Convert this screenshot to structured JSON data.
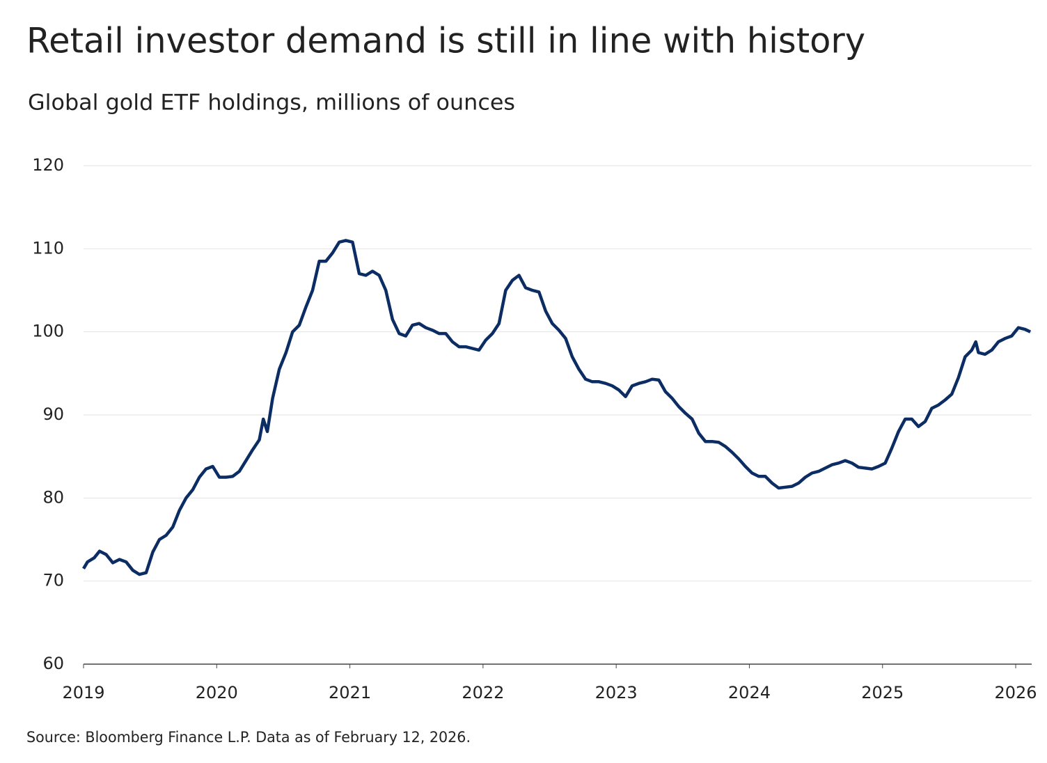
{
  "chart_data": {
    "type": "line",
    "title": "Retail investor demand is still in line with history",
    "subtitle": "Global gold ETF holdings, millions of ounces",
    "source": "Source: Bloomberg Finance L.P. Data as of February 12, 2026.",
    "x": [
      2019.0,
      2019.03,
      2019.08,
      2019.12,
      2019.17,
      2019.22,
      2019.27,
      2019.32,
      2019.37,
      2019.42,
      2019.47,
      2019.52,
      2019.57,
      2019.62,
      2019.67,
      2019.72,
      2019.77,
      2019.82,
      2019.87,
      2019.92,
      2019.97,
      2020.02,
      2020.07,
      2020.12,
      2020.17,
      2020.22,
      2020.27,
      2020.32,
      2020.35,
      2020.38,
      2020.42,
      2020.47,
      2020.52,
      2020.57,
      2020.62,
      2020.67,
      2020.72,
      2020.77,
      2020.82,
      2020.87,
      2020.92,
      2020.97,
      2021.02,
      2021.07,
      2021.12,
      2021.17,
      2021.22,
      2021.27,
      2021.32,
      2021.37,
      2021.42,
      2021.47,
      2021.52,
      2021.57,
      2021.62,
      2021.67,
      2021.72,
      2021.77,
      2021.82,
      2021.87,
      2021.92,
      2021.97,
      2022.02,
      2022.07,
      2022.12,
      2022.17,
      2022.22,
      2022.27,
      2022.32,
      2022.37,
      2022.42,
      2022.47,
      2022.52,
      2022.57,
      2022.62,
      2022.67,
      2022.72,
      2022.77,
      2022.82,
      2022.87,
      2022.92,
      2022.97,
      2023.02,
      2023.07,
      2023.12,
      2023.17,
      2023.22,
      2023.27,
      2023.32,
      2023.37,
      2023.42,
      2023.47,
      2023.52,
      2023.57,
      2023.62,
      2023.67,
      2023.72,
      2023.77,
      2023.82,
      2023.87,
      2023.92,
      2023.97,
      2024.02,
      2024.07,
      2024.12,
      2024.17,
      2024.22,
      2024.27,
      2024.32,
      2024.37,
      2024.42,
      2024.47,
      2024.52,
      2024.57,
      2024.62,
      2024.67,
      2024.72,
      2024.77,
      2024.82,
      2024.87,
      2024.92,
      2024.97,
      2025.02,
      2025.07,
      2025.12,
      2025.17,
      2025.22,
      2025.27,
      2025.32,
      2025.37,
      2025.42,
      2025.47,
      2025.52,
      2025.57,
      2025.62,
      2025.67,
      2025.7,
      2025.72,
      2025.77,
      2025.82,
      2025.87,
      2025.92,
      2025.97,
      2026.02,
      2026.07,
      2026.11
    ],
    "series": [
      {
        "color": "#0c2d63",
        "values": [
          71.5,
          72.3,
          72.8,
          73.6,
          73.2,
          72.2,
          72.6,
          72.3,
          71.3,
          70.8,
          71.0,
          73.5,
          75.0,
          75.5,
          76.5,
          78.5,
          80.0,
          81.0,
          82.5,
          83.5,
          83.8,
          82.5,
          82.5,
          82.6,
          83.2,
          84.5,
          85.8,
          87.0,
          89.5,
          88.0,
          92.0,
          95.5,
          97.5,
          100.0,
          100.8,
          103.0,
          105.0,
          108.5,
          108.5,
          109.5,
          110.8,
          111.0,
          110.8,
          107.0,
          106.8,
          107.3,
          106.8,
          105.0,
          101.5,
          99.8,
          99.5,
          100.8,
          101.0,
          100.5,
          100.2,
          99.8,
          99.8,
          98.8,
          98.2,
          98.2,
          98.0,
          97.8,
          99.0,
          99.8,
          101.0,
          105.0,
          106.2,
          106.8,
          105.3,
          105.0,
          104.8,
          102.5,
          101.0,
          100.2,
          99.2,
          97.0,
          95.5,
          94.3,
          94.0,
          94.0,
          93.8,
          93.5,
          93.0,
          92.2,
          93.5,
          93.8,
          94.0,
          94.3,
          94.2,
          92.8,
          92.0,
          91.0,
          90.2,
          89.5,
          87.8,
          86.8,
          86.8,
          86.7,
          86.2,
          85.5,
          84.7,
          83.8,
          83.0,
          82.6,
          82.6,
          81.8,
          81.2,
          81.3,
          81.4,
          81.8,
          82.5,
          83.0,
          83.2,
          83.6,
          84.0,
          84.2,
          84.5,
          84.2,
          83.7,
          83.6,
          83.5,
          83.8,
          84.2,
          86.0,
          88.0,
          89.5,
          89.5,
          88.6,
          89.2,
          90.8,
          91.2,
          91.8,
          92.5,
          94.5,
          97.0,
          97.8,
          98.8,
          97.5,
          97.3,
          97.8,
          98.8,
          99.2,
          99.5,
          100.5,
          100.3,
          100.0
        ]
      }
    ],
    "xlim": [
      2019,
      2026.12
    ],
    "xticks": [
      2019,
      2020,
      2021,
      2022,
      2023,
      2024,
      2025,
      2026
    ],
    "ylim": [
      60,
      120
    ],
    "yticks": [
      60,
      70,
      80,
      90,
      100,
      110,
      120
    ],
    "grid": true
  }
}
